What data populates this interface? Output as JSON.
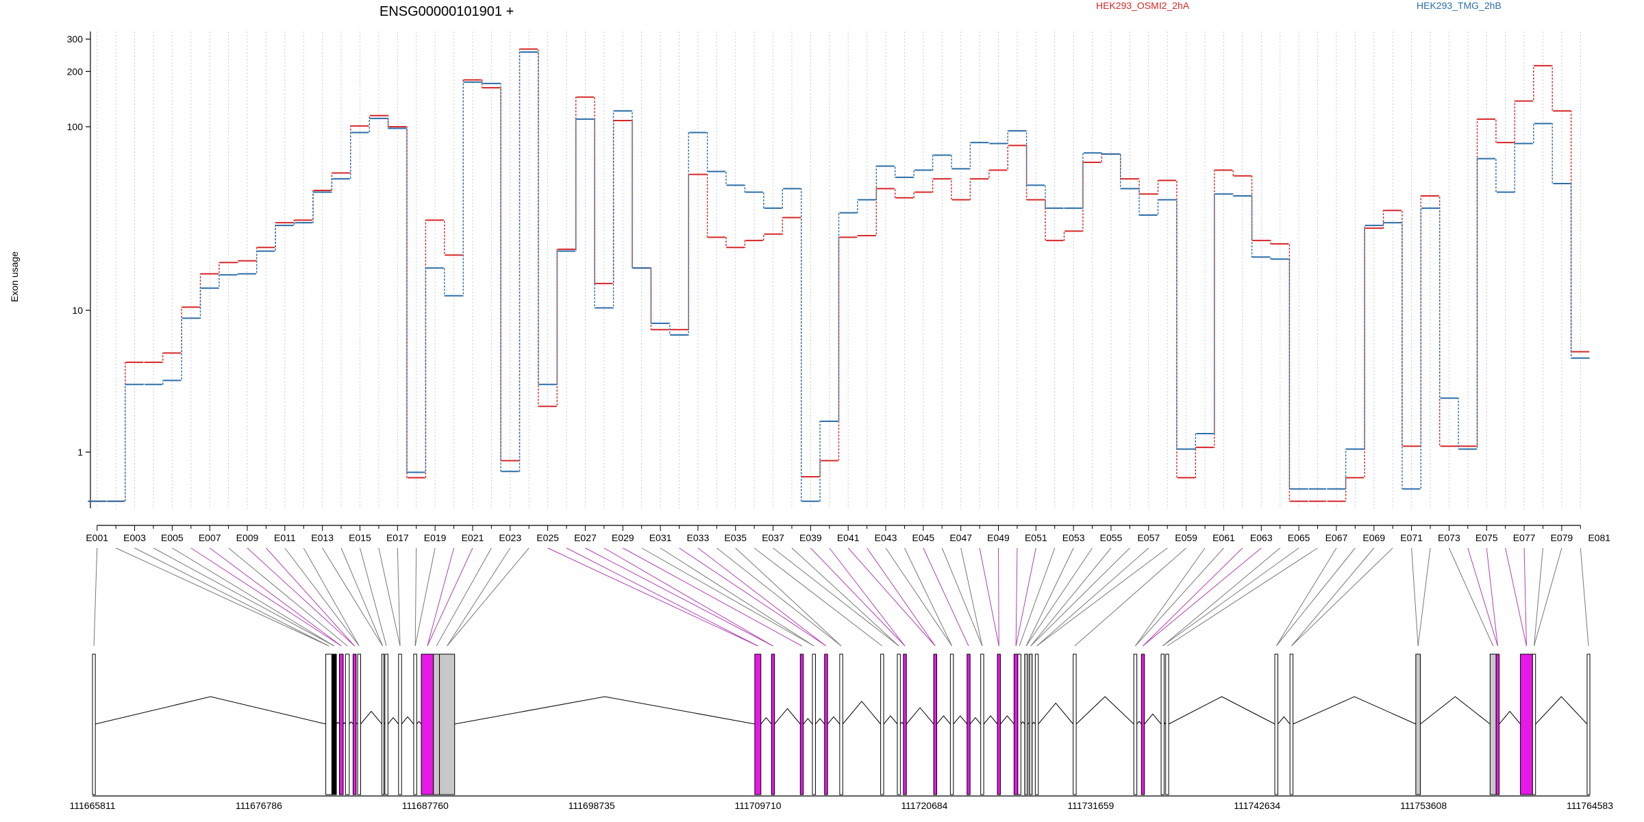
{
  "chart_data": {
    "type": "line",
    "title": "ENSG00000101901 +",
    "ylabel": "Exon usage",
    "yscale": "log",
    "ylim": [
      0.4,
      330
    ],
    "yticks": [
      {
        "value": 1,
        "label": "1"
      },
      {
        "value": 10,
        "label": "10"
      },
      {
        "value": 100,
        "label": "100"
      },
      {
        "value": 200,
        "label": "200"
      },
      {
        "value": 300,
        "label": "300"
      }
    ],
    "grid": "vertical-dotted",
    "legend_position": "top",
    "series": [
      {
        "name": "HEK293_OSMI2_2hA",
        "color": "#d62728",
        "values": [
          0.45,
          0.45,
          4.3,
          4.3,
          5.0,
          10.4,
          15.8,
          18.2,
          18.6,
          22.0,
          30.0,
          31.0,
          45.0,
          56.0,
          101.0,
          115.0,
          100.0,
          0.66,
          31.0,
          20.0,
          180.0,
          163.0,
          0.87,
          265.0,
          2.1,
          21.5,
          145.0,
          14.0,
          108.0,
          17.0,
          7.3,
          7.3,
          55.0,
          25.0,
          22.0,
          24.0,
          26.0,
          32.0,
          0.67,
          0.87,
          25.0,
          25.5,
          46.0,
          41.0,
          44.0,
          52.0,
          40.0,
          52.0,
          58.0,
          79.0,
          40.0,
          24.0,
          27.0,
          64.0,
          71.0,
          52.0,
          43.0,
          51.0,
          0.66,
          1.08,
          58.0,
          54.0,
          24.0,
          23.0,
          0.45,
          0.45,
          0.45,
          0.66,
          28.0,
          35.0,
          1.1,
          42.0,
          1.1,
          1.1,
          110.0,
          82.0,
          138.0,
          215.0,
          122.0,
          5.1
        ]
      },
      {
        "name": "HEK293_TMG_2hB",
        "color": "#2b6ea8",
        "values": [
          0.45,
          0.45,
          3.0,
          3.0,
          3.2,
          8.8,
          13.2,
          15.6,
          15.8,
          21.0,
          29.0,
          30.0,
          44.0,
          52.0,
          93.0,
          111.0,
          98.0,
          0.72,
          17.0,
          12.0,
          175.0,
          172.0,
          0.73,
          255.0,
          3.0,
          21.0,
          110.0,
          10.3,
          122.0,
          17.0,
          8.1,
          6.7,
          93.0,
          57.0,
          48.0,
          44.0,
          36.0,
          46.0,
          0.45,
          1.65,
          34.0,
          40.0,
          61.0,
          53.0,
          58.0,
          70.0,
          59.0,
          82.0,
          81.0,
          95.0,
          48.0,
          36.0,
          36.0,
          72.0,
          71.0,
          46.0,
          33.0,
          40.0,
          1.05,
          1.35,
          43.0,
          42.0,
          19.5,
          19.0,
          0.55,
          0.55,
          0.55,
          1.05,
          29.0,
          30.0,
          0.55,
          36.0,
          2.4,
          1.05,
          67.0,
          44.0,
          81.0,
          104.0,
          49.0,
          4.6
        ]
      }
    ],
    "exon_labels": [
      "E001",
      "E003",
      "E005",
      "E007",
      "E009",
      "E011",
      "E013",
      "E015",
      "E017",
      "E019",
      "E021",
      "E023",
      "E025",
      "E027",
      "E029",
      "E031",
      "E033",
      "E035",
      "E037",
      "E039",
      "E041",
      "E043",
      "E045",
      "E047",
      "E049",
      "E051",
      "E053",
      "E055",
      "E057",
      "E059",
      "E061",
      "E063",
      "E065",
      "E067",
      "E069",
      "E071",
      "E073",
      "E075",
      "E077",
      "E079",
      "E081"
    ],
    "genomic_axis_labels": [
      "111665811",
      "111676786",
      "111687760",
      "111698735",
      "111709710",
      "111720684",
      "111731659",
      "111742634",
      "111753608",
      "111764583"
    ],
    "genomic_range": [
      111665811,
      111764583
    ],
    "gene_model": {
      "exons": [
        {
          "start": 111665811,
          "end": 111666000,
          "fill": "white"
        },
        {
          "start": 111681200,
          "end": 111681600,
          "fill": "white"
        },
        {
          "start": 111681600,
          "end": 111681900,
          "fill": "black"
        },
        {
          "start": 111682100,
          "end": 111682350,
          "fill": "magenta"
        },
        {
          "start": 111682500,
          "end": 111682750,
          "fill": "white"
        },
        {
          "start": 111683000,
          "end": 111683200,
          "fill": "magenta"
        },
        {
          "start": 111683300,
          "end": 111683500,
          "fill": "white"
        },
        {
          "start": 111684900,
          "end": 111685000,
          "fill": "white"
        },
        {
          "start": 111685100,
          "end": 111685300,
          "fill": "white"
        },
        {
          "start": 111686000,
          "end": 111686200,
          "fill": "white"
        },
        {
          "start": 111687000,
          "end": 111687200,
          "fill": "white"
        },
        {
          "start": 111687500,
          "end": 111688300,
          "fill": "magenta"
        },
        {
          "start": 111688300,
          "end": 111688700,
          "fill": "gray"
        },
        {
          "start": 111688700,
          "end": 111689700,
          "fill": "gray"
        },
        {
          "start": 111709500,
          "end": 111709900,
          "fill": "magenta"
        },
        {
          "start": 111710600,
          "end": 111710800,
          "fill": "magenta"
        },
        {
          "start": 111712500,
          "end": 111712700,
          "fill": "magenta"
        },
        {
          "start": 111713300,
          "end": 111713500,
          "fill": "white"
        },
        {
          "start": 111714100,
          "end": 111714300,
          "fill": "magenta"
        },
        {
          "start": 111715100,
          "end": 111715300,
          "fill": "white"
        },
        {
          "start": 111717800,
          "end": 111718000,
          "fill": "white"
        },
        {
          "start": 111718900,
          "end": 111719100,
          "fill": "white"
        },
        {
          "start": 111719300,
          "end": 111719500,
          "fill": "magenta"
        },
        {
          "start": 111721300,
          "end": 111721500,
          "fill": "magenta"
        },
        {
          "start": 111722400,
          "end": 111722600,
          "fill": "white"
        },
        {
          "start": 111723500,
          "end": 111723700,
          "fill": "magenta"
        },
        {
          "start": 111724400,
          "end": 111724600,
          "fill": "white"
        },
        {
          "start": 111725500,
          "end": 111725700,
          "fill": "magenta"
        },
        {
          "start": 111726600,
          "end": 111726850,
          "fill": "magenta"
        },
        {
          "start": 111726850,
          "end": 111727050,
          "fill": "white"
        },
        {
          "start": 111727300,
          "end": 111727500,
          "fill": "gray"
        },
        {
          "start": 111727600,
          "end": 111727800,
          "fill": "gray"
        },
        {
          "start": 111728000,
          "end": 111728200,
          "fill": "white"
        },
        {
          "start": 111730500,
          "end": 111730700,
          "fill": "white"
        },
        {
          "start": 111734500,
          "end": 111734700,
          "fill": "white"
        },
        {
          "start": 111735000,
          "end": 111735200,
          "fill": "magenta"
        },
        {
          "start": 111736300,
          "end": 111736500,
          "fill": "white"
        },
        {
          "start": 111736600,
          "end": 111736800,
          "fill": "white"
        },
        {
          "start": 111743800,
          "end": 111744000,
          "fill": "white"
        },
        {
          "start": 111744800,
          "end": 111745000,
          "fill": "white"
        },
        {
          "start": 111753100,
          "end": 111753400,
          "fill": "gray"
        },
        {
          "start": 111758000,
          "end": 111758400,
          "fill": "gray"
        },
        {
          "start": 111758400,
          "end": 111758600,
          "fill": "magenta"
        },
        {
          "start": 111760000,
          "end": 111760800,
          "fill": "magenta"
        },
        {
          "start": 111760800,
          "end": 111761000,
          "fill": "white"
        },
        {
          "start": 111764400,
          "end": 111764583,
          "fill": "white"
        }
      ]
    }
  }
}
